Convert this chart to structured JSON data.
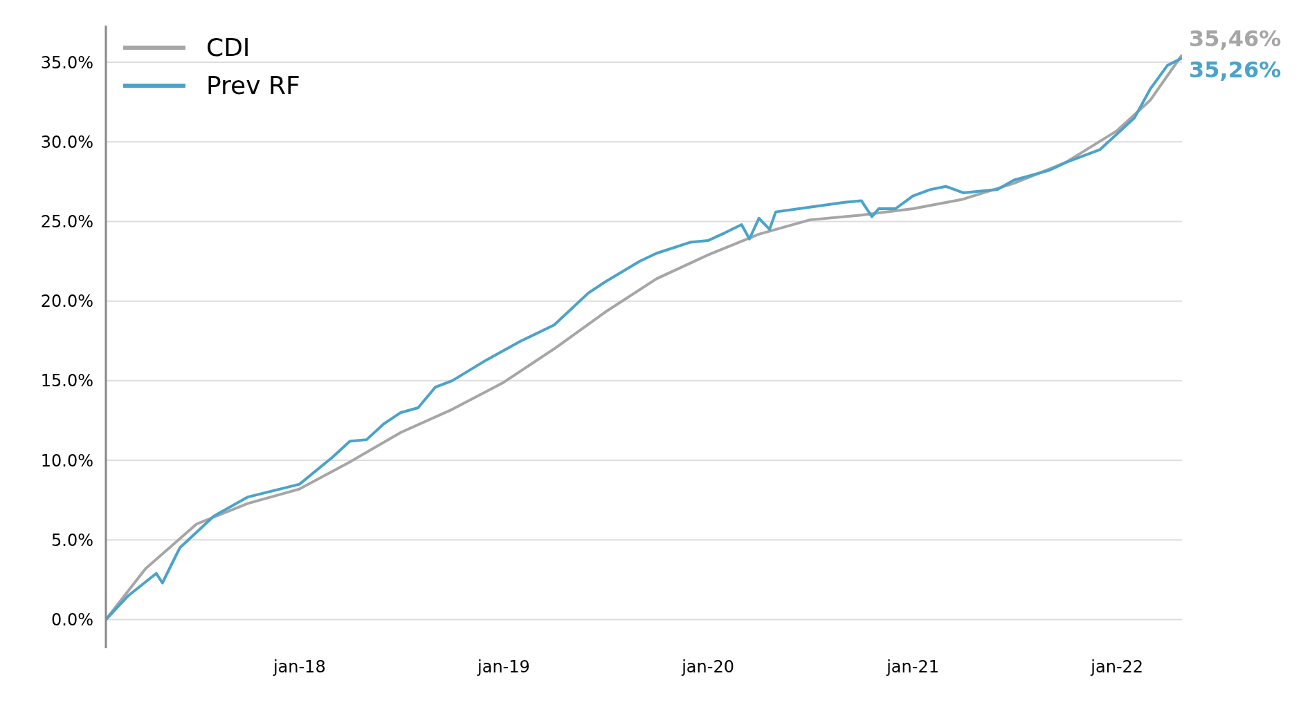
{
  "chart_data": {
    "type": "line",
    "legend": "top left",
    "grid": "y",
    "marker": "none",
    "line_style": "solid",
    "xlim": [
      "2017-01-20",
      "2022-04-27"
    ],
    "xticks": [
      {
        "value": "2018-01-01",
        "label": "jan-18"
      },
      {
        "value": "2019-01-01",
        "label": "jan-19"
      },
      {
        "value": "2020-01-01",
        "label": "jan-20"
      },
      {
        "value": "2021-01-01",
        "label": "jan-21"
      },
      {
        "value": "2022-01-01",
        "label": "jan-22"
      }
    ],
    "ylim": [
      -1.8,
      37.3
    ],
    "yticks": [
      {
        "value": 0,
        "label": "0.0%"
      },
      {
        "value": 5,
        "label": "5.0%"
      },
      {
        "value": 10,
        "label": "10.0%"
      },
      {
        "value": 15,
        "label": "15.0%"
      },
      {
        "value": 20,
        "label": "20.0%"
      },
      {
        "value": 25,
        "label": "25.0%"
      },
      {
        "value": 30,
        "label": "30.0%"
      },
      {
        "value": 35,
        "label": "35.0%"
      }
    ],
    "series": [
      {
        "name": "CDI",
        "color": "#a6a6a6",
        "x": [
          "2017-01-20",
          "2017-04-01",
          "2017-07-01",
          "2017-10-01",
          "2018-01-01",
          "2018-04-01",
          "2018-07-01",
          "2018-10-01",
          "2019-01-01",
          "2019-04-01",
          "2019-07-01",
          "2019-10-01",
          "2020-01-01",
          "2020-04-01",
          "2020-07-01",
          "2020-10-01",
          "2021-01-01",
          "2021-04-01",
          "2021-07-01",
          "2021-10-01",
          "2022-01-01",
          "2022-03-01",
          "2022-04-27"
        ],
        "values": [
          0,
          3.2,
          6.0,
          7.3,
          8.2,
          9.9,
          11.75,
          13.2,
          14.9,
          17.0,
          19.3,
          21.4,
          22.9,
          24.2,
          25.1,
          25.4,
          25.8,
          26.4,
          27.4,
          28.7,
          30.7,
          32.6,
          35.46
        ]
      },
      {
        "name": "Prev RF",
        "color": "#4ba3c9",
        "x": [
          "2017-01-20",
          "2017-03-01",
          "2017-04-20",
          "2017-05-01",
          "2017-05-08",
          "2017-06-01",
          "2017-08-01",
          "2017-10-01",
          "2018-01-01",
          "2018-03-01",
          "2018-04-01",
          "2018-05-01",
          "2018-06-01",
          "2018-07-01",
          "2018-08-01",
          "2018-09-01",
          "2018-10-01",
          "2018-12-01",
          "2019-02-01",
          "2019-04-01",
          "2019-06-01",
          "2019-07-01",
          "2019-09-01",
          "2019-10-01",
          "2019-12-01",
          "2020-01-01",
          "2020-02-01",
          "2020-03-01",
          "2020-03-15",
          "2020-04-01",
          "2020-04-20",
          "2020-05-01",
          "2020-07-01",
          "2020-09-01",
          "2020-10-01",
          "2020-10-20",
          "2020-11-01",
          "2020-12-01",
          "2021-01-01",
          "2021-02-01",
          "2021-03-01",
          "2021-04-01",
          "2021-06-01",
          "2021-07-01",
          "2021-09-01",
          "2021-10-01",
          "2021-12-01",
          "2022-01-01",
          "2022-02-01",
          "2022-03-01",
          "2022-04-01",
          "2022-04-27"
        ],
        "values": [
          0,
          1.5,
          2.9,
          2.3,
          2.8,
          4.5,
          6.5,
          7.7,
          8.5,
          10.2,
          11.2,
          11.3,
          12.3,
          13.0,
          13.3,
          14.6,
          15.0,
          16.3,
          17.5,
          18.5,
          20.5,
          21.2,
          22.5,
          23.0,
          23.7,
          23.8,
          24.3,
          24.8,
          23.9,
          25.2,
          24.5,
          25.6,
          25.9,
          26.2,
          26.3,
          25.3,
          25.8,
          25.8,
          26.6,
          27.0,
          27.2,
          26.8,
          27.0,
          27.6,
          28.2,
          28.7,
          29.5,
          30.5,
          31.5,
          33.3,
          34.8,
          35.26
        ]
      }
    ],
    "annotations": [
      {
        "text": "35,46%",
        "x": "2022-04-27",
        "y": 35.46
      },
      {
        "text": "35,26%",
        "x": "2022-04-27",
        "y": 35.26
      }
    ]
  }
}
